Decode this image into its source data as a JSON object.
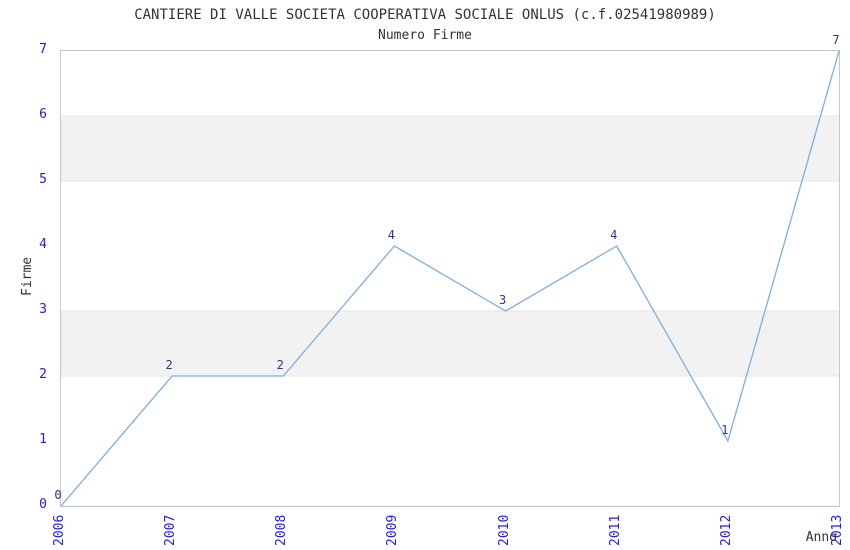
{
  "header": {
    "title": "CANTIERE DI VALLE SOCIETA COOPERATIVA SOCIALE ONLUS (c.f.02541980989)",
    "subtitle": "Numero Firme"
  },
  "chart_data": {
    "type": "line",
    "title": "CANTIERE DI VALLE SOCIETA COOPERATIVA SOCIALE ONLUS (c.f.02541980989)",
    "subtitle": "Numero Firme",
    "categories": [
      "2006",
      "2007",
      "2008",
      "2009",
      "2010",
      "2011",
      "2012",
      "2013"
    ],
    "values": [
      0,
      2,
      2,
      4,
      3,
      4,
      1,
      7
    ],
    "point_labels": [
      "0",
      "2",
      "2",
      "4",
      "3",
      "4",
      "1",
      "7"
    ],
    "xlabel": "Anno",
    "ylabel": "Firme",
    "ylim": [
      0,
      7
    ],
    "yticks": [
      0,
      1,
      2,
      3,
      4,
      5,
      6,
      7
    ],
    "grid": "alternating horizontal shaded bands between 1-2, 3-4, 5-6",
    "legend": "none",
    "x_tick_rotation": 90,
    "colors": {
      "line": "#7dade2",
      "tick_labels": "#2222dd",
      "point_labels": "#333388",
      "titles": "#333333",
      "band_fill": "#f2f2f2",
      "band_edge": "#e6e6e6",
      "plot_border": "#c8c8c8",
      "background": "#ffffff"
    }
  }
}
